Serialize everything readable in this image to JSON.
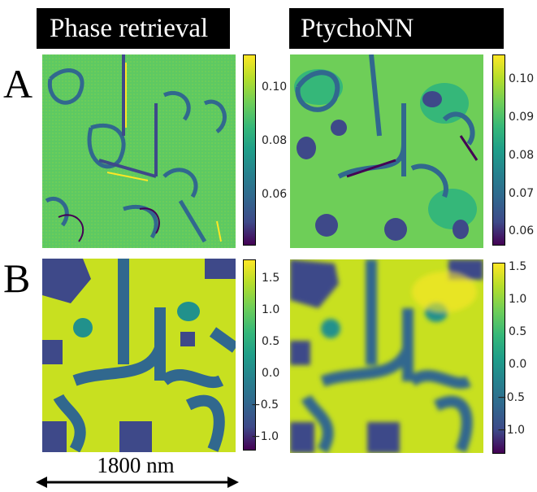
{
  "headers": {
    "left": "Phase retrieval",
    "right": "PtychoNN"
  },
  "rows": {
    "a": "A",
    "b": "B"
  },
  "colorbars": {
    "a_left": [
      "0.10",
      "0.08",
      "0.06"
    ],
    "a_right": [
      "0.10",
      "0.09",
      "0.08",
      "0.07",
      "0.06"
    ],
    "b_left": [
      "1.5",
      "1.0",
      "0.5",
      "0.0",
      "−0.5",
      "−1.0"
    ],
    "b_right": [
      "1.5",
      "1.0",
      "0.5",
      "0.0",
      "−0.5",
      "−1.0"
    ]
  },
  "scale_bar": {
    "label": "1800 nm"
  },
  "colors": {
    "colormap": "viridis",
    "dark": "#440154",
    "mid": "#21918c",
    "light": "#fde725"
  }
}
